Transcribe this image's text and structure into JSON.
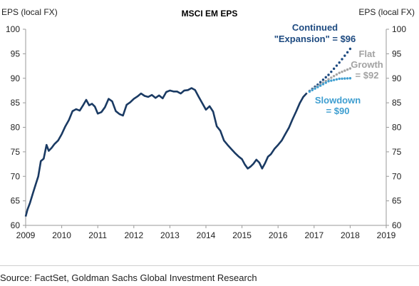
{
  "chart_data": {
    "type": "line",
    "title": "MSCI EM EPS",
    "ylabel_left": "EPS (local FX)",
    "ylabel_right": "EPS (local FX)",
    "xlim": [
      2009,
      2019
    ],
    "ylim": [
      60,
      100
    ],
    "xticks": [
      "2009",
      "2010",
      "2011",
      "2012",
      "2013",
      "2014",
      "2015",
      "2016",
      "2017",
      "2018",
      "2019"
    ],
    "yticks": [
      "60",
      "65",
      "70",
      "75",
      "80",
      "85",
      "90",
      "95",
      "100"
    ],
    "grid": false,
    "colors": {
      "history": "#1a3a63",
      "expansion": "#1d4a80",
      "flat": "#a3a3a3",
      "slowdown": "#3e9ed0"
    },
    "series": [
      {
        "key": "history",
        "style": "solid",
        "x": [
          2009.0,
          2009.05,
          2009.12,
          2009.2,
          2009.28,
          2009.35,
          2009.42,
          2009.5,
          2009.58,
          2009.64,
          2009.72,
          2009.8,
          2009.9,
          2010.0,
          2010.1,
          2010.2,
          2010.3,
          2010.4,
          2010.5,
          2010.6,
          2010.68,
          2010.76,
          2010.84,
          2010.92,
          2011.0,
          2011.1,
          2011.2,
          2011.3,
          2011.4,
          2011.5,
          2011.6,
          2011.7,
          2011.8,
          2011.9,
          2012.0,
          2012.1,
          2012.2,
          2012.3,
          2012.4,
          2012.5,
          2012.6,
          2012.7,
          2012.8,
          2012.9,
          2013.0,
          2013.1,
          2013.2,
          2013.3,
          2013.4,
          2013.5,
          2013.6,
          2013.7,
          2013.8,
          2013.9,
          2014.0,
          2014.1,
          2014.2,
          2014.3,
          2014.4,
          2014.5,
          2014.6,
          2014.7,
          2014.8,
          2014.9,
          2015.0,
          2015.08,
          2015.16,
          2015.24,
          2015.32,
          2015.4,
          2015.48,
          2015.56,
          2015.64,
          2015.72,
          2015.8,
          2015.9,
          2016.0,
          2016.1,
          2016.2,
          2016.3,
          2016.4,
          2016.5,
          2016.6,
          2016.7,
          2016.8
        ],
        "y": [
          61.8,
          63.2,
          64.6,
          66.5,
          68.4,
          70.0,
          73.1,
          73.6,
          76.4,
          75.2,
          75.8,
          76.6,
          77.3,
          78.6,
          80.2,
          81.5,
          83.3,
          83.7,
          83.4,
          84.6,
          85.6,
          84.5,
          84.8,
          84.2,
          82.8,
          83.1,
          84.1,
          85.8,
          85.3,
          83.3,
          82.7,
          82.4,
          84.6,
          85.1,
          85.8,
          86.3,
          86.9,
          86.4,
          86.2,
          86.6,
          86.0,
          86.5,
          85.9,
          87.2,
          87.5,
          87.3,
          87.3,
          86.9,
          87.5,
          87.6,
          88.0,
          87.6,
          86.2,
          84.9,
          83.6,
          84.3,
          83.2,
          80.2,
          79.3,
          77.3,
          76.4,
          75.6,
          74.8,
          74.1,
          73.5,
          72.4,
          71.6,
          72.0,
          72.6,
          73.4,
          72.8,
          71.6,
          72.7,
          74.0,
          74.5,
          75.6,
          76.4,
          77.3,
          78.6,
          79.9,
          81.6,
          83.2,
          84.9,
          86.2,
          87.0
        ]
      },
      {
        "key": "expansion",
        "style": "dotted",
        "x": [
          2016.8,
          2017.1,
          2017.4,
          2017.7,
          2018.0
        ],
        "y": [
          87.0,
          88.7,
          90.7,
          93.2,
          96.0
        ]
      },
      {
        "key": "flat",
        "style": "dotted",
        "x": [
          2016.8,
          2017.1,
          2017.4,
          2017.7,
          2018.0
        ],
        "y": [
          87.0,
          88.4,
          89.8,
          91.1,
          92.0
        ]
      },
      {
        "key": "slowdown",
        "style": "dotted",
        "x": [
          2016.8,
          2017.1,
          2017.4,
          2017.7,
          2018.0
        ],
        "y": [
          87.0,
          88.2,
          89.4,
          89.9,
          90.0
        ]
      }
    ],
    "annotations": [
      {
        "key": "expansion",
        "lines": [
          "Continued",
          "\"Expansion\" = $96"
        ]
      },
      {
        "key": "flat",
        "lines": [
          "Flat",
          "Growth",
          "= $92"
        ]
      },
      {
        "key": "slowdown",
        "lines": [
          "Slowdown",
          "= $90"
        ]
      }
    ]
  },
  "source": "Source: FactSet, Goldman Sachs Global Investment Research"
}
